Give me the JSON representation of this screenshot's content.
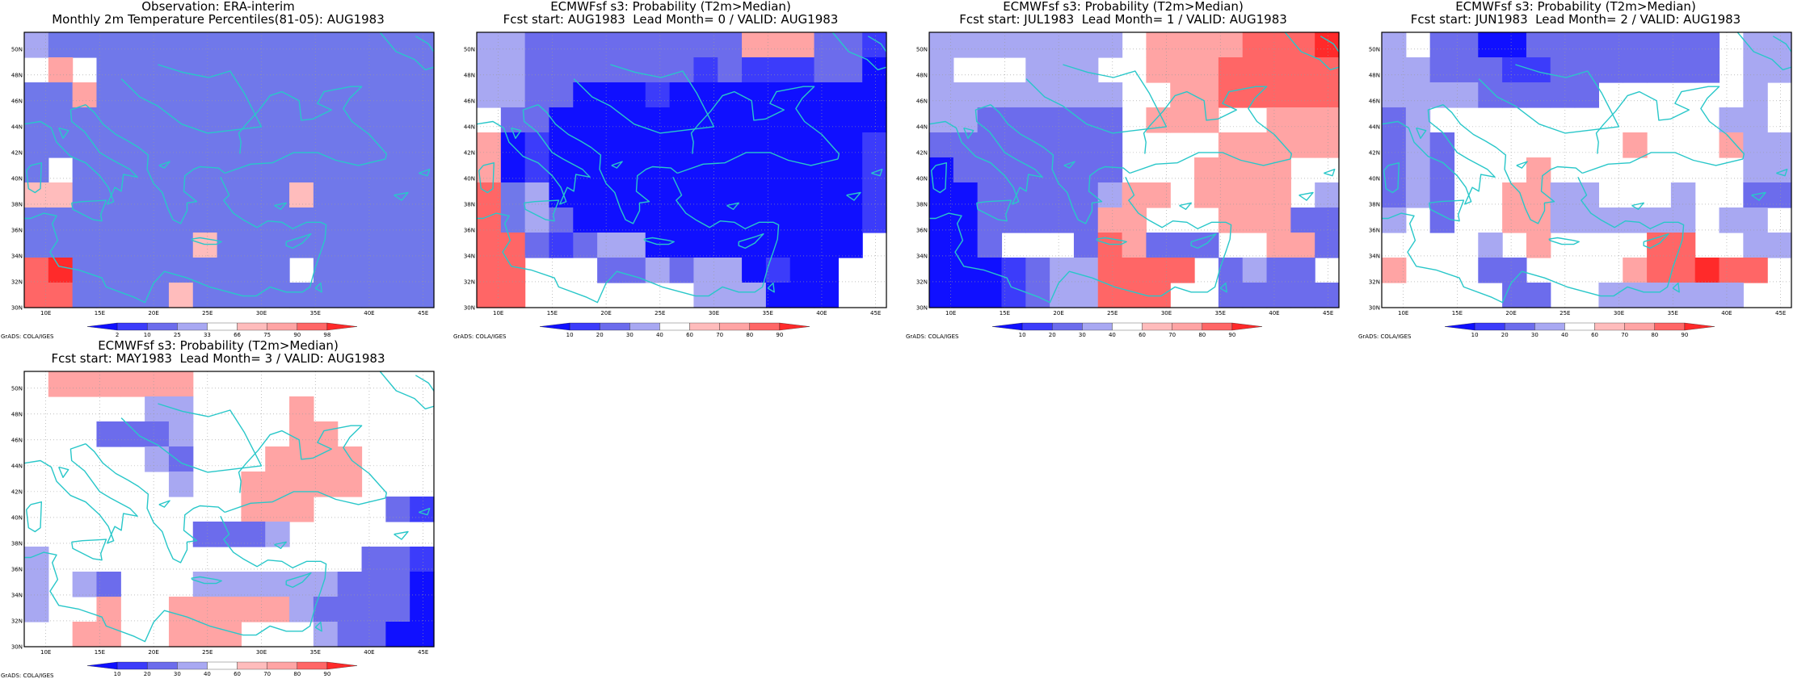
{
  "panels": [
    {
      "title1": "Observation: ERA-interim",
      "title2": "Monthly 2m Temperature Percentiles(81-05): AUG1983",
      "colorbar_labels": [
        "2",
        "10",
        "25",
        "33",
        "66",
        "75",
        "90",
        "98"
      ],
      "credit": "GrADS: COLA/IGES",
      "grid": [
        "46666666666666666",
        "07066666666666666",
        "66766666666666666",
        "66666666666666666",
        "66666666666666666",
        "60666666666666666",
        "55666666666566666",
        "66666666666666666",
        "66666665666666666",
        "89666666666066666",
        "88666656666666666"
      ]
    },
    {
      "title1": "ECMWFsf s3: Probability (T2m>Median)",
      "title2": "Fcst start: AUG1983  Lead Month= 0 / VALID: AUG1983",
      "colorbar_labels": [
        "10",
        "20",
        "30",
        "40",
        "60",
        "70",
        "80",
        "90"
      ],
      "credit": "GrADS: COLA/IGES",
      "grid": [
        "44333333333777332",
        "44333333323222331",
        "44331112111111111",
        "03311111111111111",
        "71211111111111112",
        "71211111111111112",
        "86411111111111112",
        "86431111111111112",
        "88323441111111110",
        "88000334344121100",
        "88000000044411100"
      ]
    },
    {
      "title1": "ECMWFsf s3: Probability (T2m>Median)",
      "title2": "Fcst start: JUL1983  Lead Month= 1 / VALID: AUG1983",
      "colorbar_labels": [
        "10",
        "20",
        "30",
        "40",
        "60",
        "70",
        "80",
        "90"
      ],
      "credit": "GrADS: COLA/IGES",
      "grid": [
        "44444444077778889",
        "40004440077788888",
        "44444444007788888",
        "44333333077700777",
        "33333333000077777",
        "13333333000777700",
        "11333334770777704",
        "11333337700077733",
        "11300038733300773",
        "11123448888034330",
        "11123448880033333"
      ]
    },
    {
      "title1": "ECMWFsf s3: Probability (T2m>Median)",
      "title2": "Fcst start: JUN1983  Lead Month= 2 / VALID: AUG1983",
      "colorbar_labels": [
        "10",
        "20",
        "30",
        "40",
        "60",
        "70",
        "80",
        "90"
      ],
      "credit": "GrADS: COLA/IGES",
      "grid": [
        "40331133333333044",
        "44333223333333044",
        "44443333300000040",
        "34000000000000440",
        "34300000007000744",
        "34300070000000044",
        "34300774400040033",
        "40300774444440440",
        "00004070000880044",
        "70003300007889880",
        "00000330044444400"
      ]
    },
    {
      "title1": "ECMWFsf s3: Probability (T2m>Median)",
      "title2": "Fcst start: MAY1983  Lead Month= 3 / VALID: AUG1983",
      "colorbar_labels": [
        "10",
        "20",
        "30",
        "40",
        "60",
        "70",
        "80",
        "90"
      ],
      "credit": "GrADS: COLA/IGES",
      "grid": [
        "07777770000000000",
        "00000440000700000",
        "00033340000770000",
        "00000430007777000",
        "00000040077777000",
        "00000000077700032",
        "00000003334000000",
        "40000000000000332",
        "40430004444443331",
        "40070077777433331",
        "00770077700043311"
      ]
    }
  ],
  "map": {
    "lon_ticks": [
      "10E",
      "15E",
      "20E",
      "25E",
      "30E",
      "35E",
      "40E",
      "45E"
    ],
    "lat_ticks": [
      "30N",
      "32N",
      "34N",
      "36N",
      "38N",
      "40N",
      "42N",
      "44N",
      "46N",
      "48N",
      "50N"
    ],
    "palette": {
      "1": "#1010ff",
      "2": "#3c3cfa",
      "3": "#6c6cec",
      "4": "#a8a8f2",
      "0": "#ffffff",
      "5": "#ffbcbc",
      "6": "#7078ea",
      "7": "#ffa4a4",
      "8": "#ff6666",
      "9": "#ff2a2a"
    },
    "coast_color": "#29c7c9",
    "grid_color": "#9a9a9a"
  }
}
